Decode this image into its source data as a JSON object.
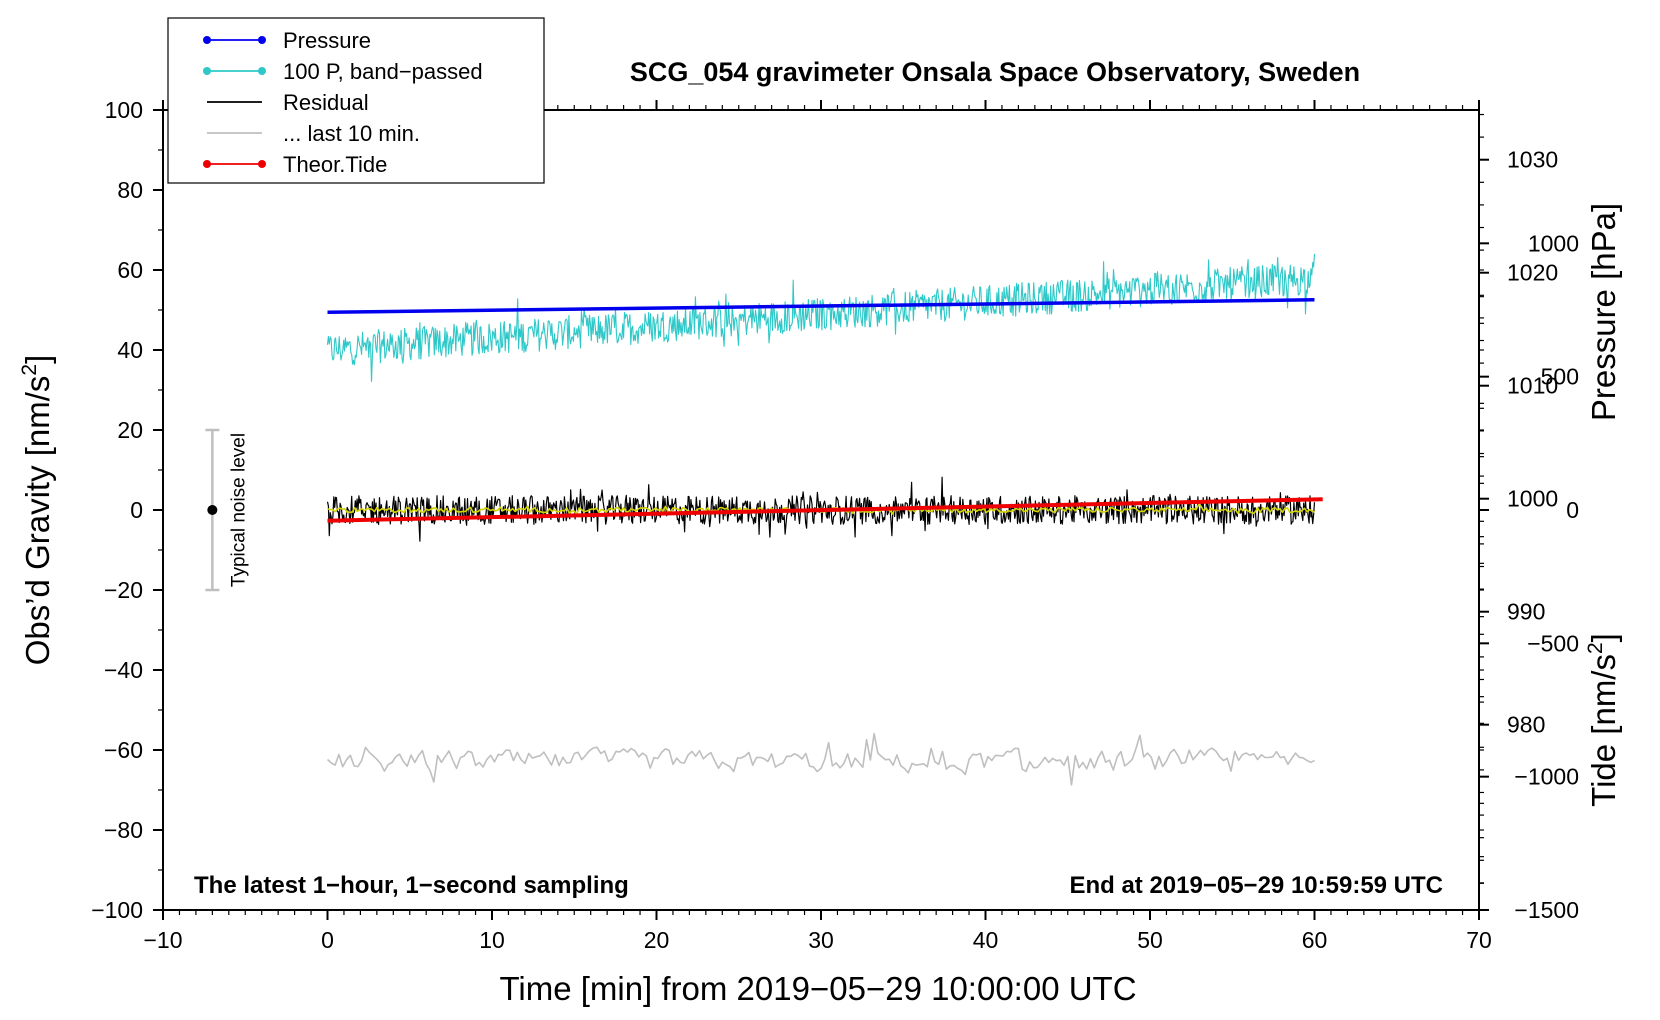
{
  "chart_data": {
    "type": "line",
    "title": "SCG_054 gravimeter Onsala Space Observatory, Sweden",
    "xlabel": "Time [min] from 2019−05−29 10:00:00 UTC",
    "ylabel_left_main": "Obs’d Gravity [nm/s",
    "ylabel_left_sup": "2",
    "ylabel_left_close": "]",
    "ylabel_right_pressure": "Pressure [hPa]",
    "ylabel_right_tide_main": "Tide [nm/s",
    "ylabel_right_tide_sup": "2",
    "ylabel_right_tide_close": "]",
    "xlim": [
      -10,
      70
    ],
    "ylim": [
      -100,
      100
    ],
    "pressure_ylim": [
      963.6,
      1034.4
    ],
    "tide_ylim": [
      -1500,
      1500
    ],
    "x_ticks": [
      -10,
      0,
      10,
      20,
      30,
      40,
      50,
      60,
      70
    ],
    "x_tick_labels": [
      "−10",
      "0",
      "10",
      "20",
      "30",
      "40",
      "50",
      "60",
      "70"
    ],
    "y_ticks": [
      -100,
      -80,
      -60,
      -40,
      -20,
      0,
      20,
      40,
      60,
      80,
      100
    ],
    "y_tick_labels": [
      "−100",
      "−80",
      "−60",
      "−40",
      "−20",
      "0",
      "20",
      "40",
      "60",
      "80",
      "100"
    ],
    "pressure_ticks": [
      980,
      990,
      1000,
      1010,
      1020,
      1030
    ],
    "pressure_tick_labels": [
      "980",
      "990",
      "1000",
      "1010",
      "1020",
      "1030"
    ],
    "tide_ticks": [
      -1500,
      -1000,
      -500,
      0,
      500,
      1000
    ],
    "tide_tick_labels": [
      "−1500",
      "−1000",
      "−500",
      "0",
      "500",
      "1000"
    ],
    "legend": [
      {
        "label": "Pressure",
        "color": "#0000ee",
        "marker": true
      },
      {
        "label": "100 P, band−passed",
        "color": "#2ec8c8",
        "marker": true
      },
      {
        "label": "Residual",
        "color": "#000000",
        "marker": false
      },
      {
        "label": "... last 10 min.",
        "color": "#bfbfbf",
        "marker": false
      },
      {
        "label": "Theor.Tide",
        "color": "#ee0000",
        "marker": true
      }
    ],
    "series": [
      {
        "name": "Pressure",
        "axis": "pressure",
        "color": "#0000ee",
        "x": [
          0,
          60
        ],
        "values": [
          1016.5,
          1017.6
        ]
      },
      {
        "name": "100 P, band−passed",
        "axis": "gravity",
        "color": "#2ec8c8",
        "x": [
          0,
          60
        ],
        "values": [
          40,
          58
        ],
        "noise_amplitude": 7
      },
      {
        "name": "Residual",
        "axis": "gravity",
        "color": "#000000",
        "x": [
          0,
          60
        ],
        "values": [
          0,
          0
        ],
        "noise_amplitude": 6
      },
      {
        "name": "Residual smoothed",
        "axis": "gravity",
        "color": "#d4d400",
        "x": [
          0,
          60
        ],
        "values": [
          0,
          0
        ],
        "noise_amplitude": 1
      },
      {
        "name": "... last 10 min.",
        "axis": "gravity",
        "color": "#bfbfbf",
        "x": [
          0,
          60
        ],
        "values": [
          -63,
          -63
        ],
        "noise_amplitude": 7
      },
      {
        "name": "Theor.Tide",
        "axis": "tide",
        "color": "#ee0000",
        "x": [
          0,
          60.5
        ],
        "values": [
          -40,
          40
        ]
      }
    ],
    "noise_bar": {
      "x": -7,
      "center": 0,
      "low": -20,
      "high": 20,
      "label": "Typical noise level"
    },
    "annotation_left": "The latest 1−hour, 1−second sampling",
    "annotation_right": "End at 2019−05−29 10:59:59 UTC"
  }
}
